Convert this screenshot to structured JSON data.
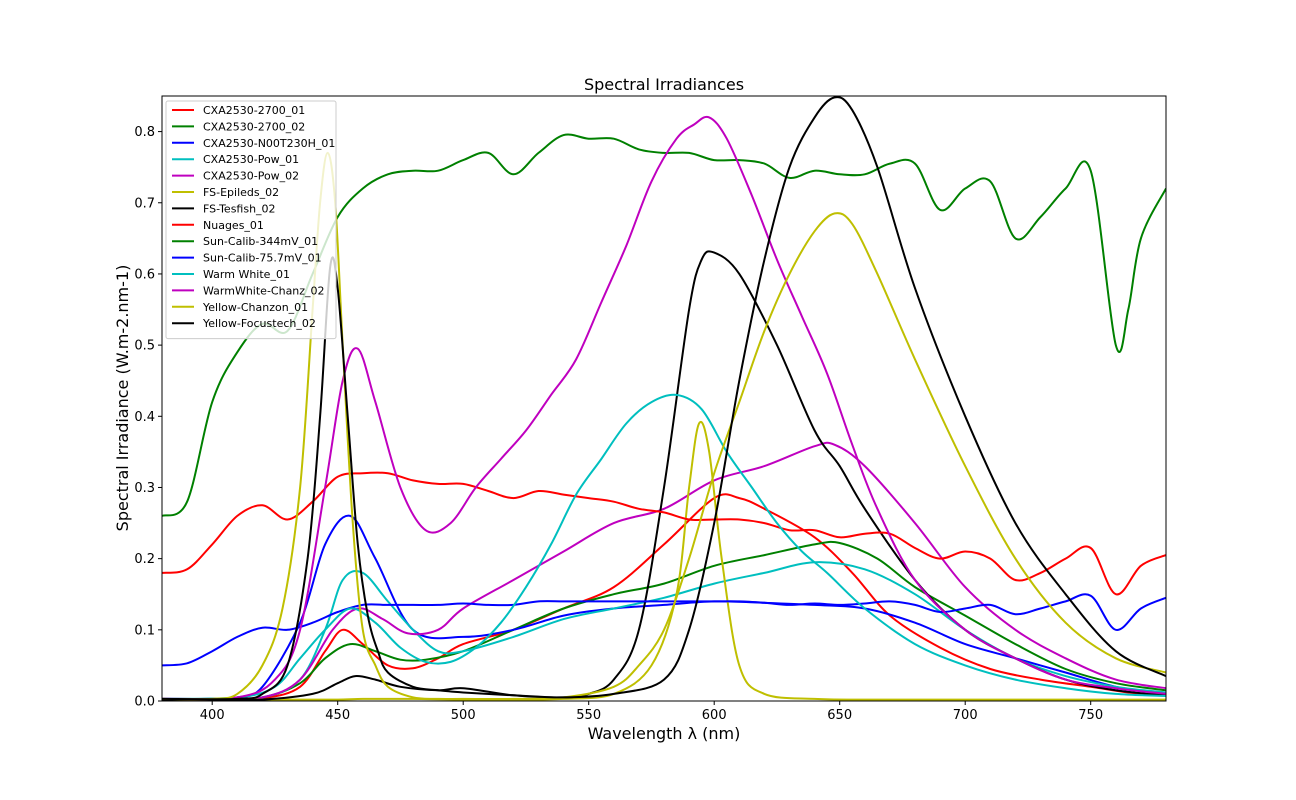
{
  "chart_data": {
    "type": "line",
    "title": "Spectral Irradiances",
    "xlabel": "Wavelength λ (nm)",
    "ylabel": "Spectral Irradiance (W.m-2.nm-1)",
    "xlim": [
      380,
      780
    ],
    "ylim": [
      0.0,
      0.85
    ],
    "xticks": [
      400,
      450,
      500,
      550,
      600,
      650,
      700,
      750
    ],
    "yticks": [
      0.0,
      0.1,
      0.2,
      0.3,
      0.4,
      0.5,
      0.6,
      0.7,
      0.8
    ],
    "ytick_labels": [
      "0.0",
      "0.1",
      "0.2",
      "0.3",
      "0.4",
      "0.5",
      "0.6",
      "0.7",
      "0.8"
    ],
    "grid": false,
    "legend_position": "upper-left",
    "series": [
      {
        "name": "CXA2530-2700_01",
        "color": "#ff0000",
        "x": [
          380,
          400,
          420,
          435,
          445,
          452,
          460,
          470,
          480,
          490,
          500,
          520,
          540,
          560,
          580,
          600,
          610,
          620,
          640,
          655,
          670,
          690,
          710,
          730,
          750,
          765,
          780
        ],
        "y": [
          0.003,
          0.003,
          0.004,
          0.02,
          0.07,
          0.1,
          0.08,
          0.05,
          0.046,
          0.06,
          0.08,
          0.1,
          0.13,
          0.16,
          0.22,
          0.285,
          0.285,
          0.27,
          0.23,
          0.18,
          0.12,
          0.075,
          0.045,
          0.03,
          0.02,
          0.012,
          0.008
        ]
      },
      {
        "name": "CXA2530-2700_02",
        "color": "#008000",
        "x": [
          380,
          400,
          420,
          435,
          445,
          455,
          465,
          475,
          485,
          500,
          520,
          540,
          560,
          580,
          600,
          620,
          640,
          650,
          665,
          680,
          700,
          720,
          740,
          760,
          780
        ],
        "y": [
          0.002,
          0.003,
          0.005,
          0.025,
          0.06,
          0.08,
          0.07,
          0.058,
          0.058,
          0.07,
          0.1,
          0.13,
          0.15,
          0.165,
          0.19,
          0.205,
          0.22,
          0.222,
          0.2,
          0.16,
          0.12,
          0.08,
          0.045,
          0.025,
          0.015
        ]
      },
      {
        "name": "CXA2530-N00T230H_01",
        "color": "#0000ff",
        "x": [
          380,
          400,
          410,
          420,
          435,
          445,
          455,
          465,
          480,
          500,
          520,
          540,
          560,
          580,
          600,
          620,
          640,
          660,
          680,
          700,
          720,
          740,
          760,
          780
        ],
        "y": [
          0.003,
          0.003,
          0.005,
          0.02,
          0.11,
          0.22,
          0.26,
          0.2,
          0.1,
          0.09,
          0.1,
          0.12,
          0.13,
          0.135,
          0.14,
          0.138,
          0.135,
          0.13,
          0.11,
          0.08,
          0.06,
          0.04,
          0.02,
          0.01
        ]
      },
      {
        "name": "CXA2530-Pow_01",
        "color": "#00bfbf",
        "x": [
          380,
          400,
          420,
          435,
          445,
          452,
          460,
          470,
          480,
          490,
          500,
          520,
          540,
          560,
          580,
          600,
          620,
          640,
          660,
          680,
          700,
          720,
          740,
          760,
          780
        ],
        "y": [
          0.003,
          0.003,
          0.005,
          0.03,
          0.1,
          0.17,
          0.18,
          0.14,
          0.1,
          0.07,
          0.07,
          0.09,
          0.115,
          0.13,
          0.145,
          0.165,
          0.18,
          0.195,
          0.185,
          0.15,
          0.1,
          0.06,
          0.035,
          0.02,
          0.012
        ]
      },
      {
        "name": "CXA2530-Pow_02",
        "color": "#bf00bf",
        "x": [
          380,
          400,
          420,
          435,
          448,
          458,
          468,
          478,
          490,
          500,
          520,
          540,
          560,
          580,
          600,
          620,
          640,
          648,
          660,
          680,
          700,
          720,
          740,
          760,
          780
        ],
        "y": [
          0.003,
          0.003,
          0.005,
          0.03,
          0.1,
          0.13,
          0.115,
          0.095,
          0.1,
          0.13,
          0.17,
          0.21,
          0.25,
          0.27,
          0.31,
          0.33,
          0.358,
          0.36,
          0.33,
          0.25,
          0.16,
          0.1,
          0.06,
          0.03,
          0.018
        ]
      },
      {
        "name": "FS-Epileds_02",
        "color": "#bfbf00",
        "x": [
          380,
          420,
          440,
          450,
          460,
          470,
          480,
          500,
          520,
          540,
          560,
          575,
          585,
          590,
          594,
          598,
          603,
          610,
          620,
          640,
          660,
          700,
          740,
          780
        ],
        "y": [
          0.002,
          0.002,
          0.002,
          0.002,
          0.003,
          0.003,
          0.003,
          0.002,
          0.002,
          0.003,
          0.01,
          0.05,
          0.15,
          0.3,
          0.39,
          0.35,
          0.2,
          0.05,
          0.01,
          0.003,
          0.002,
          0.002,
          0.002,
          0.002
        ]
      },
      {
        "name": "FS-Tesfish_02",
        "color": "#000000",
        "x": [
          380,
          400,
          420,
          440,
          450,
          457,
          465,
          475,
          490,
          500,
          520,
          540,
          550,
          560,
          570,
          580,
          590,
          595,
          600,
          610,
          625,
          640,
          650,
          660,
          680,
          700,
          720,
          740,
          760,
          780
        ],
        "y": [
          0.002,
          0.002,
          0.002,
          0.01,
          0.025,
          0.035,
          0.03,
          0.02,
          0.015,
          0.018,
          0.008,
          0.005,
          0.01,
          0.03,
          0.1,
          0.3,
          0.55,
          0.62,
          0.63,
          0.6,
          0.5,
          0.38,
          0.33,
          0.27,
          0.17,
          0.1,
          0.06,
          0.03,
          0.015,
          0.008
        ]
      },
      {
        "name": "Nuages_01",
        "color": "#ff0000",
        "x": [
          380,
          390,
          400,
          410,
          420,
          430,
          440,
          450,
          460,
          470,
          480,
          490,
          500,
          510,
          520,
          530,
          540,
          550,
          560,
          570,
          580,
          590,
          600,
          610,
          620,
          630,
          640,
          650,
          660,
          670,
          680,
          690,
          700,
          710,
          720,
          730,
          740,
          750,
          760,
          770,
          780
        ],
        "y": [
          0.18,
          0.185,
          0.22,
          0.26,
          0.275,
          0.255,
          0.28,
          0.315,
          0.32,
          0.32,
          0.31,
          0.305,
          0.305,
          0.295,
          0.285,
          0.295,
          0.29,
          0.285,
          0.28,
          0.27,
          0.265,
          0.255,
          0.255,
          0.255,
          0.25,
          0.24,
          0.24,
          0.23,
          0.235,
          0.235,
          0.215,
          0.2,
          0.21,
          0.2,
          0.17,
          0.18,
          0.2,
          0.215,
          0.15,
          0.19,
          0.205
        ]
      },
      {
        "name": "Sun-Calib-344mV_01",
        "color": "#008000",
        "x": [
          380,
          390,
          400,
          410,
          420,
          430,
          440,
          450,
          460,
          470,
          480,
          490,
          500,
          510,
          520,
          530,
          540,
          550,
          560,
          570,
          580,
          590,
          600,
          610,
          620,
          630,
          640,
          650,
          660,
          670,
          680,
          690,
          700,
          710,
          720,
          730,
          740,
          750,
          760,
          765,
          770,
          780
        ],
        "y": [
          0.26,
          0.28,
          0.42,
          0.49,
          0.53,
          0.52,
          0.6,
          0.68,
          0.72,
          0.74,
          0.745,
          0.745,
          0.76,
          0.77,
          0.74,
          0.77,
          0.795,
          0.79,
          0.79,
          0.775,
          0.77,
          0.77,
          0.76,
          0.76,
          0.755,
          0.735,
          0.745,
          0.74,
          0.74,
          0.755,
          0.755,
          0.69,
          0.72,
          0.73,
          0.65,
          0.68,
          0.72,
          0.745,
          0.5,
          0.55,
          0.65,
          0.72
        ]
      },
      {
        "name": "Sun-Calib-75.7mV_01",
        "color": "#0000ff",
        "x": [
          380,
          390,
          400,
          410,
          420,
          430,
          440,
          450,
          460,
          470,
          480,
          490,
          500,
          510,
          520,
          530,
          540,
          550,
          560,
          570,
          580,
          590,
          600,
          610,
          620,
          630,
          640,
          650,
          660,
          670,
          680,
          690,
          700,
          710,
          720,
          730,
          740,
          750,
          760,
          770,
          780
        ],
        "y": [
          0.05,
          0.053,
          0.07,
          0.09,
          0.103,
          0.1,
          0.11,
          0.125,
          0.135,
          0.135,
          0.135,
          0.135,
          0.137,
          0.135,
          0.135,
          0.14,
          0.14,
          0.14,
          0.14,
          0.14,
          0.14,
          0.14,
          0.14,
          0.14,
          0.138,
          0.135,
          0.137,
          0.135,
          0.137,
          0.14,
          0.135,
          0.125,
          0.13,
          0.135,
          0.122,
          0.13,
          0.14,
          0.148,
          0.1,
          0.13,
          0.145
        ]
      },
      {
        "name": "Warm White_01",
        "color": "#00bfbf",
        "x": [
          380,
          410,
          425,
          435,
          445,
          455,
          465,
          475,
          485,
          495,
          505,
          515,
          525,
          535,
          545,
          555,
          565,
          575,
          585,
          595,
          605,
          615,
          625,
          635,
          645,
          660,
          680,
          700,
          720,
          740,
          760,
          780
        ],
        "y": [
          0.003,
          0.005,
          0.02,
          0.06,
          0.1,
          0.13,
          0.11,
          0.075,
          0.055,
          0.055,
          0.075,
          0.11,
          0.16,
          0.22,
          0.29,
          0.34,
          0.39,
          0.42,
          0.43,
          0.41,
          0.35,
          0.3,
          0.25,
          0.21,
          0.18,
          0.13,
          0.08,
          0.05,
          0.03,
          0.018,
          0.01,
          0.007
        ]
      },
      {
        "name": "WarmWhite-Chanz_02",
        "color": "#bf00bf",
        "x": [
          380,
          410,
          425,
          435,
          445,
          452,
          458,
          465,
          475,
          485,
          495,
          505,
          515,
          525,
          535,
          545,
          555,
          565,
          575,
          585,
          592,
          598,
          605,
          615,
          625,
          635,
          645,
          655,
          665,
          680,
          700,
          720,
          740,
          760,
          780
        ],
        "y": [
          0.003,
          0.005,
          0.03,
          0.1,
          0.3,
          0.45,
          0.495,
          0.42,
          0.3,
          0.24,
          0.25,
          0.3,
          0.34,
          0.38,
          0.43,
          0.48,
          0.56,
          0.64,
          0.73,
          0.79,
          0.81,
          0.82,
          0.79,
          0.71,
          0.62,
          0.54,
          0.46,
          0.36,
          0.27,
          0.17,
          0.1,
          0.06,
          0.03,
          0.018,
          0.01
        ]
      },
      {
        "name": "Yellow-Chanzon_01",
        "color": "#bfbf00",
        "x": [
          380,
          400,
          410,
          420,
          428,
          435,
          440,
          443,
          446,
          449,
          452,
          456,
          460,
          465,
          470,
          480,
          490,
          500,
          520,
          540,
          560,
          570,
          580,
          590,
          600,
          610,
          620,
          630,
          640,
          648,
          655,
          665,
          680,
          700,
          720,
          740,
          760,
          780
        ],
        "y": [
          0.003,
          0.003,
          0.01,
          0.05,
          0.13,
          0.3,
          0.55,
          0.7,
          0.77,
          0.7,
          0.5,
          0.25,
          0.1,
          0.05,
          0.02,
          0.005,
          0.003,
          0.003,
          0.003,
          0.005,
          0.02,
          0.05,
          0.1,
          0.2,
          0.32,
          0.42,
          0.52,
          0.6,
          0.66,
          0.685,
          0.67,
          0.6,
          0.48,
          0.33,
          0.2,
          0.11,
          0.06,
          0.04
        ]
      },
      {
        "name": "Yellow-Focustech_02",
        "color": "#000000",
        "x": [
          380,
          410,
          420,
          430,
          438,
          443,
          447,
          450,
          454,
          458,
          462,
          466,
          470,
          480,
          490,
          500,
          520,
          540,
          560,
          580,
          590,
          600,
          610,
          620,
          630,
          640,
          648,
          655,
          665,
          680,
          700,
          720,
          740,
          760,
          780
        ],
        "y": [
          0.003,
          0.003,
          0.01,
          0.05,
          0.2,
          0.4,
          0.61,
          0.58,
          0.4,
          0.22,
          0.12,
          0.07,
          0.04,
          0.02,
          0.015,
          0.012,
          0.008,
          0.005,
          0.01,
          0.03,
          0.1,
          0.25,
          0.45,
          0.62,
          0.75,
          0.82,
          0.848,
          0.83,
          0.75,
          0.58,
          0.4,
          0.25,
          0.15,
          0.07,
          0.035
        ]
      }
    ]
  }
}
